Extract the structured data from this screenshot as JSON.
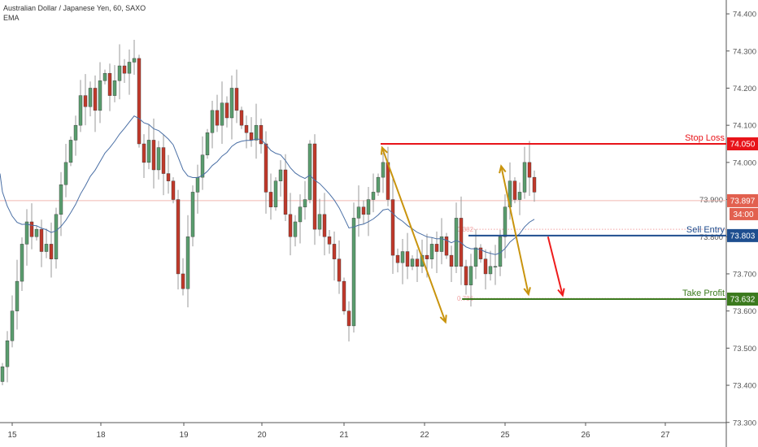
{
  "header": {
    "symbol_title": "Australian Dollar / Japanese Yen, 60, SAXO",
    "indicator": "EMA"
  },
  "chart_data": {
    "type": "candlestick",
    "title": "Australian Dollar / Japanese Yen, 60, SAXO",
    "ylim": [
      73.3,
      74.44
    ],
    "y_ticks": [
      "74.400",
      "74.300",
      "74.200",
      "74.100",
      "74.000",
      "73.900",
      "73.800",
      "73.700",
      "73.600",
      "73.500",
      "73.400",
      "73.300"
    ],
    "x_ticks": [
      "15",
      "18",
      "19",
      "20",
      "21",
      "22",
      "25",
      "26",
      "27"
    ],
    "closes": [
      73.45,
      73.52,
      73.6,
      73.68,
      73.78,
      73.84,
      73.8,
      73.82,
      73.76,
      73.78,
      73.74,
      73.86,
      73.94,
      74.0,
      74.06,
      74.1,
      74.18,
      74.15,
      74.2,
      74.14,
      74.22,
      74.24,
      74.18,
      74.22,
      74.26,
      74.24,
      74.27,
      74.28,
      74.05,
      74.0,
      74.06,
      73.98,
      74.04,
      73.97,
      73.95,
      73.9,
      73.7,
      73.66,
      73.8,
      73.92,
      73.96,
      74.02,
      74.08,
      74.14,
      74.1,
      74.16,
      74.12,
      74.2,
      74.14,
      74.1,
      74.08,
      74.06,
      74.1,
      74.05,
      73.92,
      73.88,
      73.95,
      73.98,
      73.86,
      73.8,
      73.84,
      73.88,
      73.9,
      74.05,
      73.82,
      73.86,
      73.8,
      73.78,
      73.74,
      73.68,
      73.6,
      73.56,
      73.85,
      73.88,
      73.86,
      73.9,
      73.92,
      73.96,
      74.0,
      73.9,
      73.75,
      73.73,
      73.76,
      73.72,
      73.74,
      73.72,
      73.75,
      73.74,
      73.78,
      73.76,
      73.8,
      73.75,
      73.72,
      73.85,
      73.72,
      73.67,
      73.72,
      73.77,
      73.74,
      73.7,
      73.72,
      73.72,
      73.8,
      73.88,
      73.95,
      73.9,
      73.92,
      74.0,
      73.96,
      73.92
    ],
    "ema_start": 73.97,
    "ema_period": 20,
    "levels": [
      {
        "name": "Stop Loss",
        "price": 74.05,
        "label": "74.050",
        "color": "#e8141a",
        "from_index": 77.5
      },
      {
        "name": "Sell Entry",
        "price": 73.803,
        "label": "73.803",
        "color": "#1e4e8f",
        "from_index": 95.5
      },
      {
        "name": "Take Profit",
        "price": 73.632,
        "label": "73.632",
        "color": "#3b7a1e",
        "from_index": 94.2
      }
    ],
    "fib": [
      {
        "label": "0.382",
        "price": 73.82
      },
      {
        "label": "0.786",
        "price": 73.634
      }
    ],
    "last_price": {
      "label": "73.897",
      "price": 73.897,
      "countdown": "34:00",
      "color": "#e2604f"
    },
    "arrows": [
      {
        "from": [
          77.8,
          74.04
        ],
        "to": [
          90.8,
          73.57
        ],
        "color": "#c9940e",
        "double": true
      },
      {
        "from": [
          102.2,
          73.99
        ],
        "to": [
          107.8,
          73.645
        ],
        "color": "#c9940e",
        "double": true
      },
      {
        "from": [
          111.8,
          73.8
        ],
        "to": [
          114.8,
          73.642
        ],
        "color": "#ee1c1c",
        "double": false
      }
    ],
    "colors": {
      "up": "#5a9d6e",
      "down": "#c0392b",
      "ema": "#4a6fa5"
    }
  }
}
